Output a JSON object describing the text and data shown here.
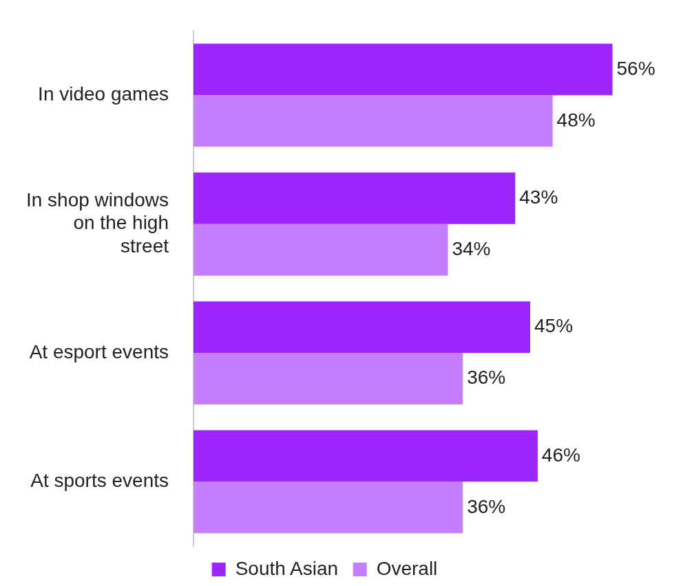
{
  "chart_data": {
    "type": "bar",
    "orientation": "horizontal",
    "categories": [
      "In video games",
      "In shop windows on the high street",
      "At esport events",
      "At sports events"
    ],
    "series": [
      {
        "name": "South Asian",
        "color": "#9d26ff",
        "values": [
          56,
          43,
          45,
          46
        ],
        "value_labels": [
          "56%",
          "43%",
          "45%",
          "46%"
        ]
      },
      {
        "name": "Overall",
        "color": "#c77dff",
        "values": [
          48,
          34,
          36,
          36
        ],
        "value_labels": [
          "48%",
          "34%",
          "36%",
          "36%"
        ]
      }
    ],
    "tick_labels": "y",
    "legend": "bottom"
  }
}
